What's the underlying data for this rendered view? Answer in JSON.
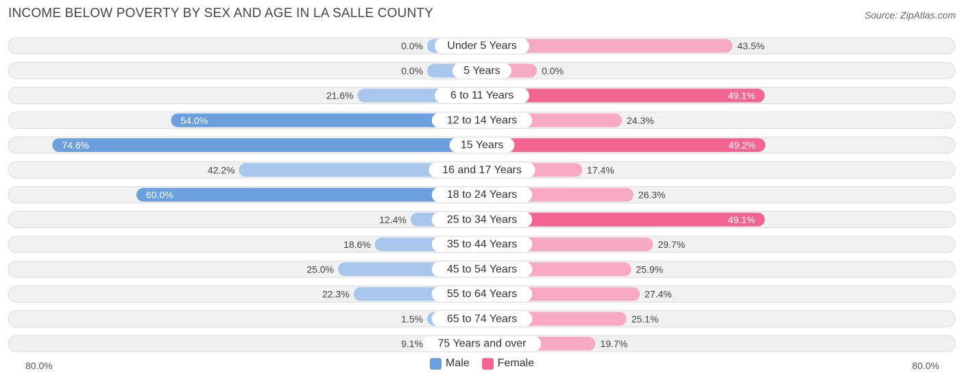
{
  "header": {
    "title": "INCOME BELOW POVERTY BY SEX AND AGE IN LA SALLE COUNTY",
    "source": "Source: ZipAtlas.com"
  },
  "colors": {
    "male_strong": "#6b9fde",
    "male_light": "#a9c7ec",
    "female_strong": "#f26591",
    "female_light": "#f7a9c3",
    "row_bg": "#f1f1f1",
    "row_border": "#dcdcdc"
  },
  "legend": {
    "male_label": "Male",
    "female_label": "Female"
  },
  "axis": {
    "left_label": "80.0%",
    "right_label": "80.0%"
  },
  "chart_data": {
    "type": "bar",
    "orientation": "horizontal-diverging",
    "title": "INCOME BELOW POVERTY BY SEX AND AGE IN LA SALLE COUNTY",
    "xlim": [
      -80,
      80
    ],
    "categories": [
      "Under 5 Years",
      "5 Years",
      "6 to 11 Years",
      "12 to 14 Years",
      "15 Years",
      "16 and 17 Years",
      "18 to 24 Years",
      "25 to 34 Years",
      "35 to 44 Years",
      "45 to 54 Years",
      "55 to 64 Years",
      "65 to 74 Years",
      "75 Years and over"
    ],
    "series": [
      {
        "name": "Male",
        "values": [
          0.0,
          0.0,
          21.6,
          54.0,
          74.6,
          42.2,
          60.0,
          12.4,
          18.6,
          25.0,
          22.3,
          1.5,
          9.1
        ],
        "labels": [
          "0.0%",
          "0.0%",
          "21.6%",
          "54.0%",
          "74.6%",
          "42.2%",
          "60.0%",
          "12.4%",
          "18.6%",
          "25.0%",
          "22.3%",
          "1.5%",
          "9.1%"
        ]
      },
      {
        "name": "Female",
        "values": [
          43.5,
          0.0,
          49.1,
          24.3,
          49.2,
          17.4,
          26.3,
          49.1,
          29.7,
          25.9,
          27.4,
          25.1,
          19.7
        ],
        "labels": [
          "43.5%",
          "0.0%",
          "49.1%",
          "24.3%",
          "49.2%",
          "17.4%",
          "26.3%",
          "49.1%",
          "29.7%",
          "25.9%",
          "27.4%",
          "25.1%",
          "19.7%"
        ]
      }
    ]
  }
}
